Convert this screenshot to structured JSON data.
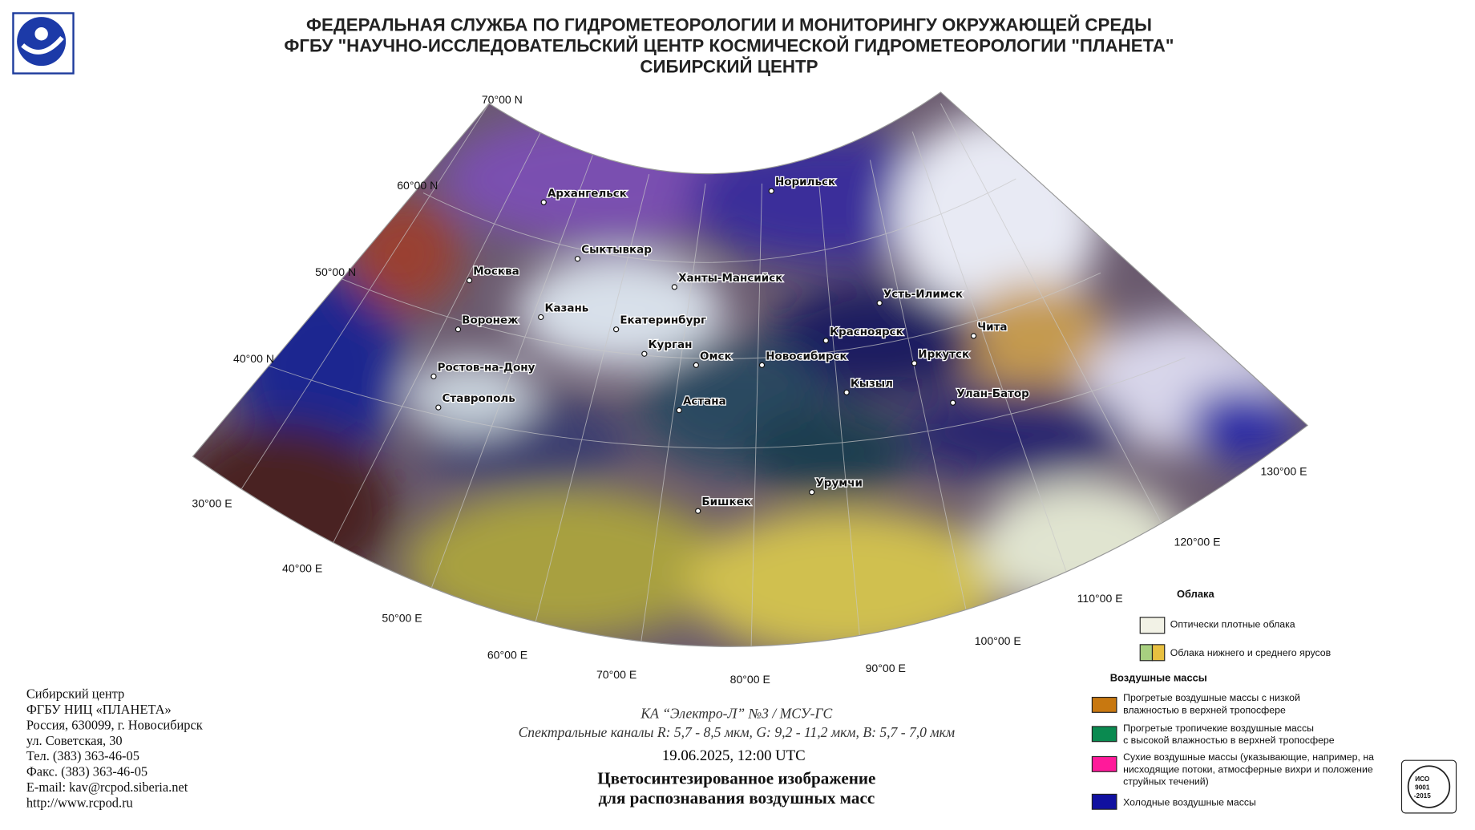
{
  "header": {
    "titles": [
      "ФЕДЕРАЛЬНАЯ СЛУЖБА ПО ГИДРОМЕТЕОРОЛОГИИ И МОНИТОРИНГУ ОКРУЖАЮЩЕЙ СРЕДЫ",
      "ФГБУ \"НАУЧНО-ИССЛЕДОВАТЕЛЬСКИЙ ЦЕНТР КОСМИЧЕСКОЙ ГИДРОМЕТЕОРОЛОГИИ \"ПЛАНЕТА\"",
      "СИБИРСКИЙ ЦЕНТР"
    ]
  },
  "map": {
    "cities": [
      "Архангельск",
      "Норильск",
      "Сыктывкар",
      "Москва",
      "Ханты-Мансийск",
      "Усть-Илимск",
      "Казань",
      "Воронеж",
      "Екатеринбург",
      "Красноярск",
      "Чита",
      "Курган",
      "Омск",
      "Новосибирск",
      "Иркутск",
      "Ростов-на-Дону",
      "Кызыл",
      "Улан-Батор",
      "Ставрополь",
      "Астана",
      "Урумчи",
      "Бишкек"
    ],
    "latitudes": [
      "70°00 N",
      "60°00 N",
      "50°00 N",
      "40°00 N"
    ],
    "longitudes": [
      "30°00 E",
      "40°00 E",
      "50°00 E",
      "60°00 E",
      "70°00 E",
      "80°00 E",
      "90°00 E",
      "100°00 E",
      "110°00 E",
      "120°00 E",
      "130°00 E"
    ]
  },
  "caption": {
    "satellite": "КА “Электро-Л” №3 / МСУ-ГС",
    "channels": "Спектральные каналы R: 5,7 - 8,5 мкм, G: 9,2 - 11,2 мкм, B: 5,7 - 7,0 мкм",
    "datetime": "19.06.2025, 12:00 UTC",
    "title": [
      "Цветосинтезированное изображение",
      "для распознавания воздушных масс"
    ]
  },
  "legend": {
    "clouds_title": "Облака",
    "clouds": [
      "Оптически плотные облака",
      "Облака нижнего и среднего ярусов"
    ],
    "air_masses_title": "Воздушные массы",
    "air_masses": [
      [
        "Прогретые воздушные массы с низкой",
        "влажностью в верхней тропосфере"
      ],
      [
        "Прогретые тропичекие воздушные массы",
        "с высокой влажностью в верхней тропосфере"
      ],
      [
        "Сухие воздушные массы (указывающие, например, на",
        "нисходящие потоки, атмосферные вихри и положение",
        "струйных течений)"
      ],
      [
        "Холодные воздушные массы"
      ]
    ]
  },
  "contacts": [
    "Сибирский центр",
    "ФГБУ НИЦ «ПЛАНЕТА»",
    "Россия, 630099, г. Новосибирск",
    "ул. Советская, 30",
    "Тел. (383) 363-46-05",
    "Факс. (383) 363-46-05",
    "E-mail: kav@rcpod.siberia.net",
    "http://www.rcpod.ru"
  ],
  "iso_badge": [
    "ИСО",
    "9001",
    "-2015"
  ]
}
